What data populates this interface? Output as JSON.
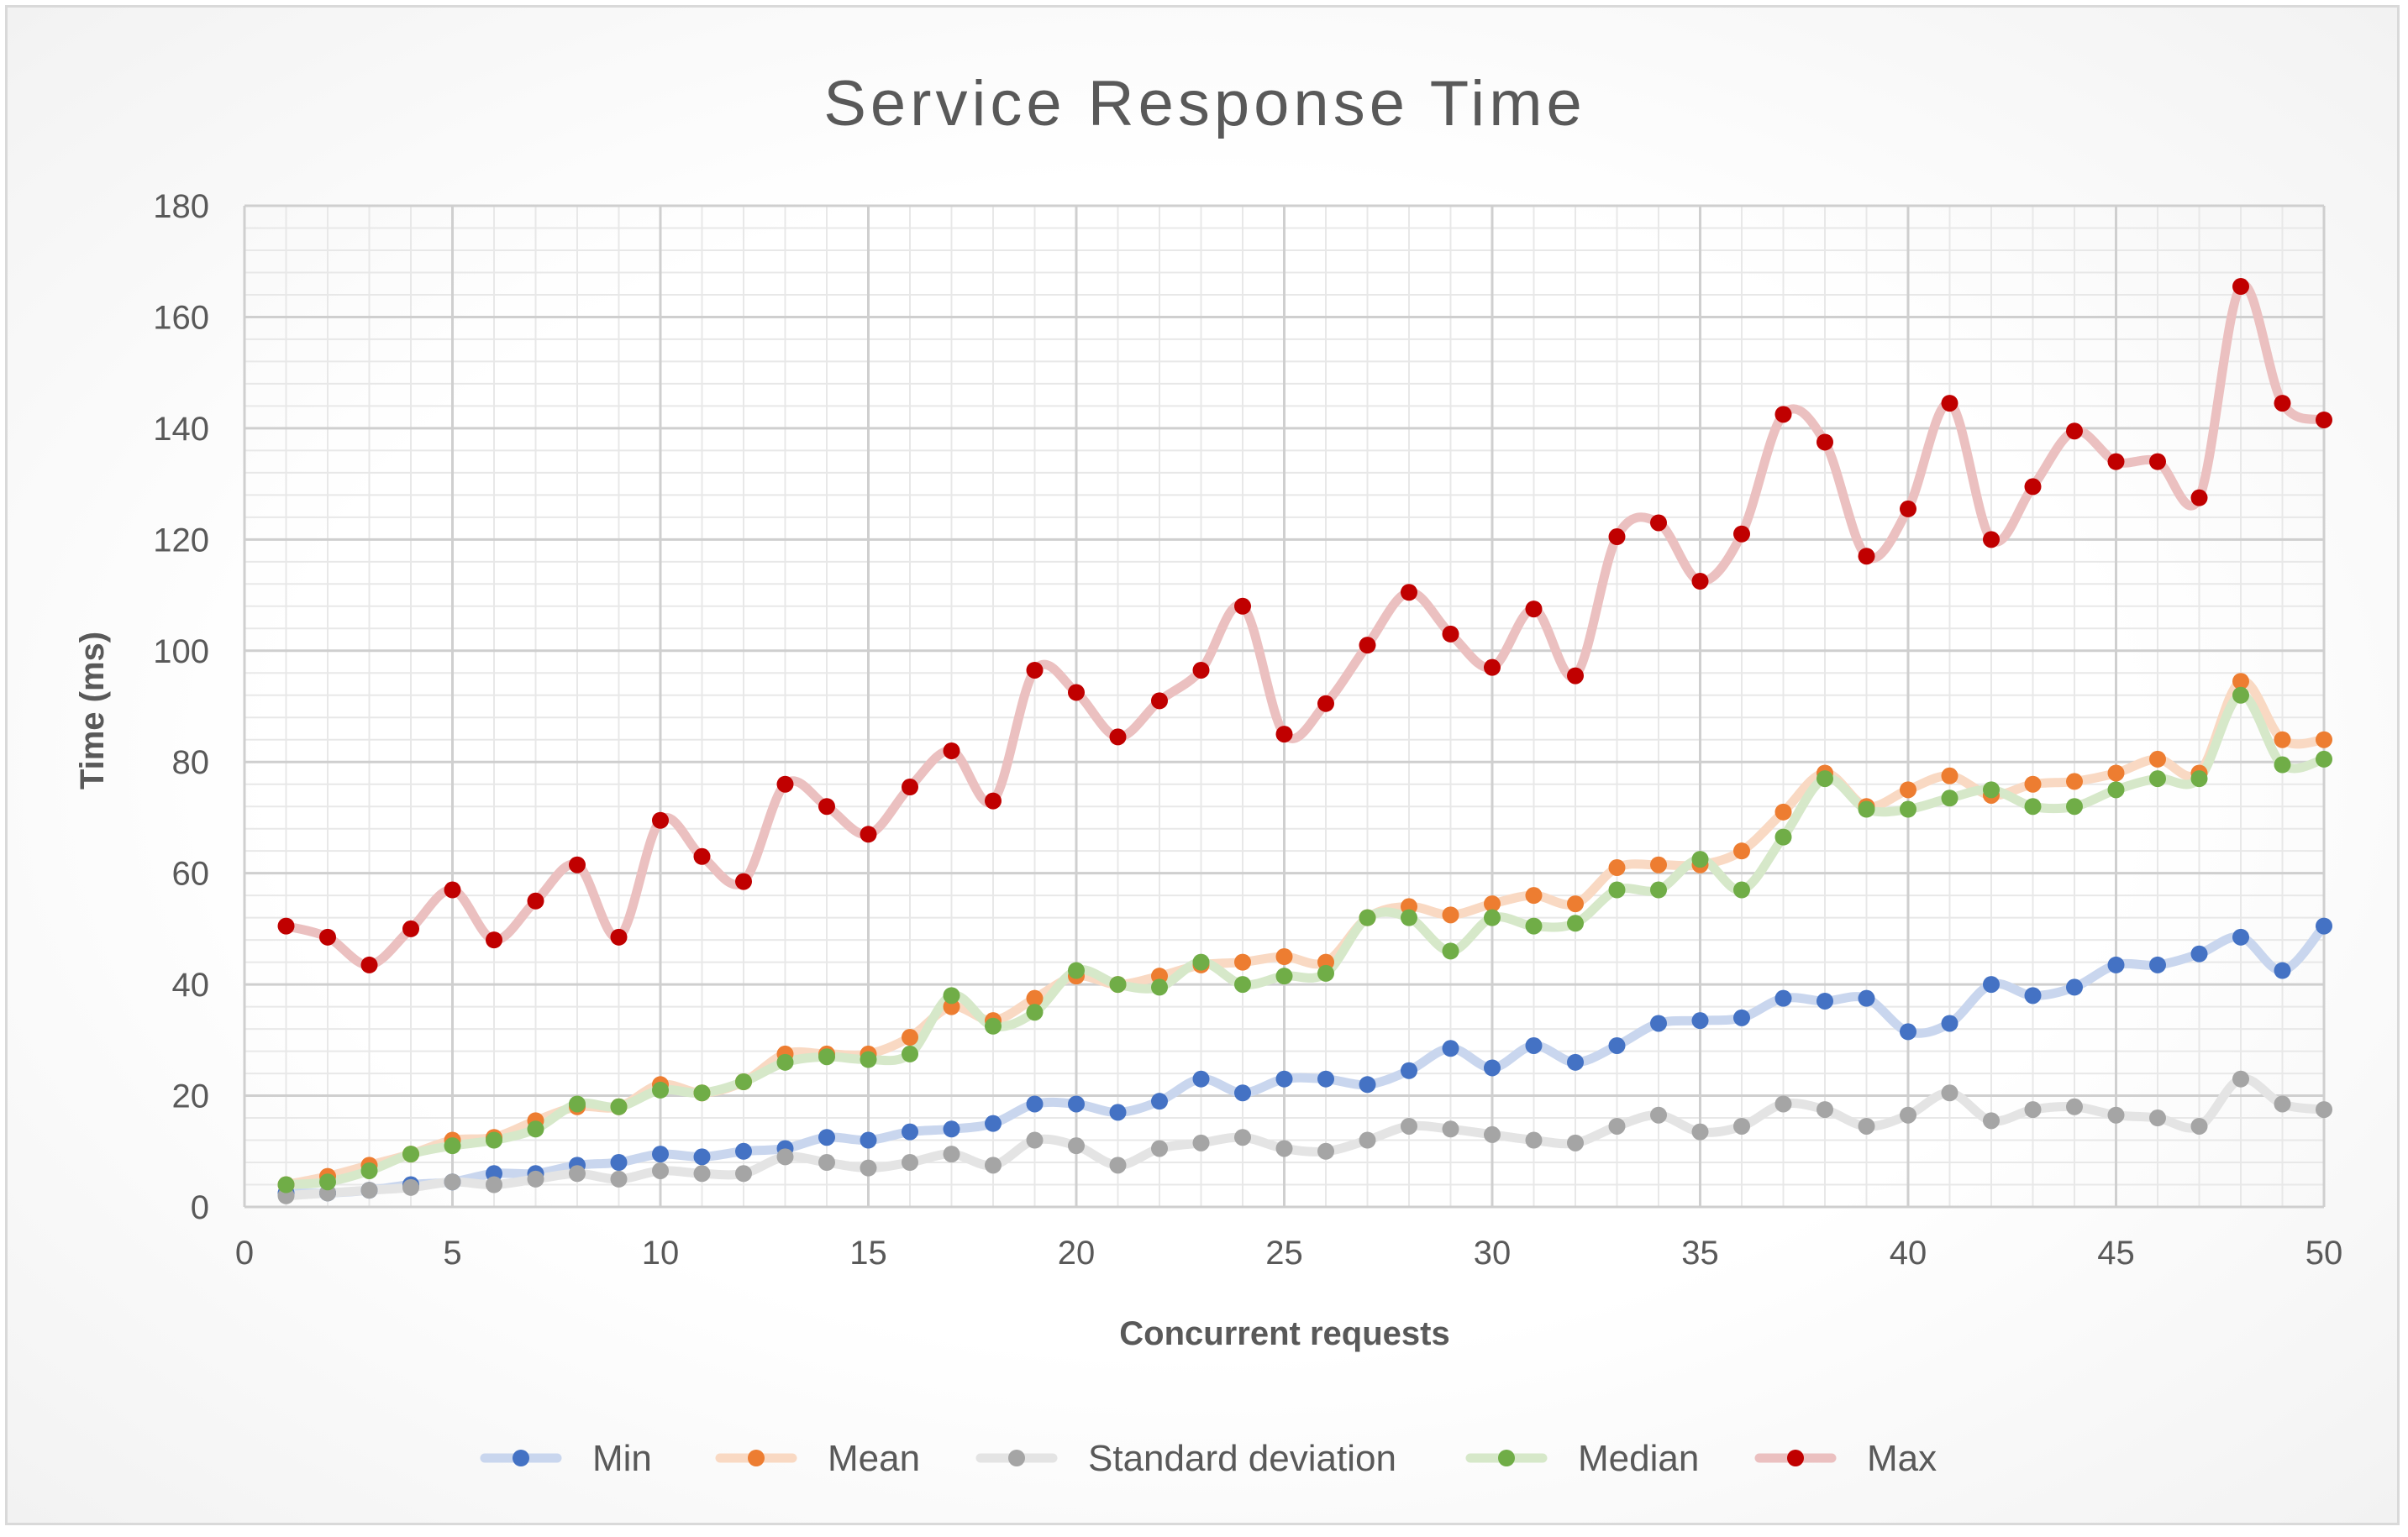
{
  "chart_data": {
    "type": "line",
    "title": "Service Response Time",
    "xlabel": "Concurrent  requests",
    "ylabel": "Time (ms)",
    "xlim": [
      0,
      50
    ],
    "ylim": [
      0,
      180
    ],
    "x_major_step": 5,
    "x_minor_step": 1,
    "y_major_step": 20,
    "y_minor_step": 4,
    "grid": true,
    "legend_position": "bottom",
    "x": [
      1,
      2,
      3,
      4,
      5,
      6,
      7,
      8,
      9,
      10,
      11,
      12,
      13,
      14,
      15,
      16,
      17,
      18,
      19,
      20,
      21,
      22,
      23,
      24,
      25,
      26,
      27,
      28,
      29,
      30,
      31,
      32,
      33,
      34,
      35,
      36,
      37,
      38,
      39,
      40,
      41,
      42,
      43,
      44,
      45,
      46,
      47,
      48,
      49,
      50
    ],
    "series": [
      {
        "name": "Min",
        "marker_color": "#4472c4",
        "line_color": "#c9d6ee",
        "values": [
          2.5,
          2.5,
          3,
          4,
          4.5,
          6,
          6,
          7.5,
          8,
          9.5,
          9,
          10,
          10.5,
          12.5,
          12,
          13.5,
          14,
          15,
          18.5,
          18.5,
          17,
          19,
          23,
          20.5,
          23,
          23,
          22,
          24.5,
          28.5,
          25,
          29,
          26,
          29,
          33,
          33.5,
          34,
          37.5,
          37,
          37.5,
          31.5,
          33,
          40,
          38,
          39.5,
          43.5,
          43.5,
          45.5,
          48.5,
          42.5,
          50.5
        ]
      },
      {
        "name": "Mean",
        "marker_color": "#ed7d31",
        "line_color": "#f9d9c3",
        "values": [
          4,
          5.5,
          7.5,
          9.5,
          12,
          12.5,
          15.5,
          18,
          18,
          22,
          20.5,
          22.5,
          27.5,
          27.5,
          27.5,
          30.5,
          36,
          33.5,
          37.5,
          41.5,
          40,
          41.5,
          43.5,
          44,
          45,
          44,
          52,
          54,
          52.5,
          54.5,
          56,
          54.5,
          61,
          61.5,
          61.5,
          64,
          71,
          78,
          72,
          75,
          77.5,
          74,
          76,
          76.5,
          78,
          80.5,
          78,
          94.5,
          84,
          84
        ]
      },
      {
        "name": "Standard deviation",
        "marker_color": "#a5a5a5",
        "line_color": "#e4e4e4",
        "values": [
          2,
          2.5,
          3,
          3.5,
          4.5,
          4,
          5,
          6,
          5,
          6.5,
          6,
          6,
          9,
          8,
          7,
          8,
          9.5,
          7.5,
          12,
          11,
          7.5,
          10.5,
          11.5,
          12.5,
          10.5,
          10,
          12,
          14.5,
          14,
          13,
          12,
          11.5,
          14.5,
          16.5,
          13.5,
          14.5,
          18.5,
          17.5,
          14.5,
          16.5,
          20.5,
          15.5,
          17.5,
          18,
          16.5,
          16,
          14.5,
          23,
          18.5,
          17.5
        ]
      },
      {
        "name": "Median",
        "marker_color": "#70ad47",
        "line_color": "#d6e8c9",
        "values": [
          4,
          4.5,
          6.5,
          9.5,
          11,
          12,
          14,
          18.5,
          18,
          21,
          20.5,
          22.5,
          26,
          27,
          26.5,
          27.5,
          38,
          32.5,
          35,
          42.5,
          40,
          39.5,
          44,
          40,
          41.5,
          42,
          52,
          52,
          46,
          52,
          50.5,
          51,
          57,
          57,
          62.5,
          57,
          66.5,
          77,
          71.5,
          71.5,
          73.5,
          75,
          72,
          72,
          75,
          77,
          77,
          92,
          79.5,
          80.5
        ]
      },
      {
        "name": "Max",
        "marker_color": "#c00000",
        "line_color": "#ebc0c0",
        "values": [
          50.5,
          48.5,
          43.5,
          50,
          57,
          48,
          55,
          61.5,
          48.5,
          69.5,
          63,
          58.5,
          76,
          72,
          67,
          75.5,
          82,
          73,
          96.5,
          92.5,
          84.5,
          91,
          96.5,
          108,
          85,
          90.5,
          101,
          110.5,
          103,
          97,
          107.5,
          95.5,
          120.5,
          123,
          112.5,
          121,
          142.5,
          137.5,
          117,
          125.5,
          144.5,
          120,
          129.5,
          139.5,
          134,
          134,
          127.5,
          165.5,
          144.5,
          141.5
        ]
      }
    ]
  }
}
